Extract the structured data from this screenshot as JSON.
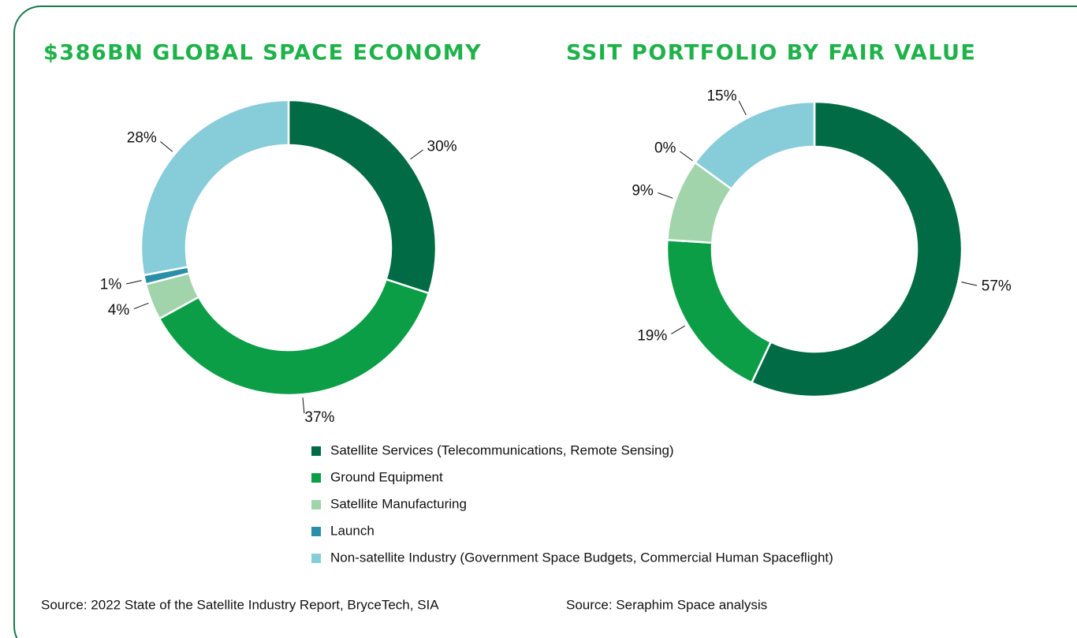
{
  "chart_data": [
    {
      "type": "donut",
      "title": "$386BN GLOBAL SPACE ECONOMY",
      "values": [
        30,
        37,
        4,
        1,
        28
      ],
      "value_labels": [
        "30%",
        "37%",
        "4%",
        "1%",
        "28%"
      ],
      "source": "Source: 2022 State of the Satellite Industry Report, BryceTech, SIA"
    },
    {
      "type": "donut",
      "title": "SSIT PORTFOLIO BY FAIR VALUE",
      "values": [
        57,
        19,
        9,
        0,
        15
      ],
      "value_labels": [
        "57%",
        "19%",
        "9%",
        "0%",
        "15%"
      ],
      "source": "Source: Seraphim Space analysis"
    }
  ],
  "legend": {
    "categories": [
      "Satellite Services (Telecommunications, Remote Sensing)",
      "Ground Equipment",
      "Satellite Manufacturing",
      "Launch",
      "Non-satellite Industry (Government Space Budgets, Commercial Human Spaceflight)"
    ],
    "colors": [
      "#006b45",
      "#0b9e46",
      "#a1d4aa",
      "#2b8ea9",
      "#87ccd9"
    ]
  }
}
